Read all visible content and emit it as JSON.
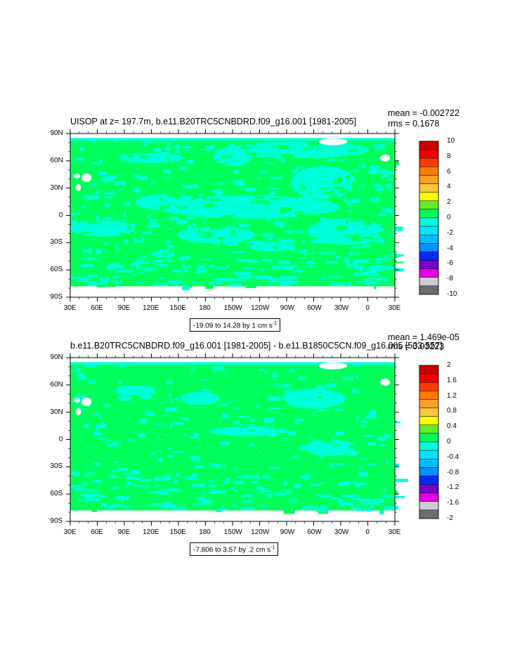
{
  "panels": [
    {
      "title": "UISOP at z= 197.7m, b.e11.B20TRC5CNBDRD.f09_g16.001 [1981-2005]",
      "mean": "mean = -0.002722",
      "rms": "rms = 0.1678",
      "contour_info": "-19.09 to 14.28 by 1 cm s",
      "contour_unit_exp": "-1",
      "colorbar_labels": [
        "10",
        "8",
        "6",
        "4",
        "2",
        "0",
        "-2",
        "-4",
        "-6",
        "-8",
        "-10"
      ],
      "colorbar_colors": [
        "#c80000",
        "#ee0000",
        "#ff3a00",
        "#ff7a00",
        "#ffa020",
        "#ffc83c",
        "#ffff00",
        "#60ee2a",
        "#00ff5a",
        "#00ffd8",
        "#00e6ff",
        "#00bcff",
        "#0090ff",
        "#0028ff",
        "#7800d2",
        "#e600e6",
        "#cccccc",
        "#6e6e6e"
      ],
      "lat_labels": [
        "90N",
        "60N",
        "30N",
        "0",
        "30S",
        "60S",
        "90S"
      ],
      "lon_labels": [
        "30E",
        "60E",
        "90E",
        "120E",
        "150E",
        "180",
        "150W",
        "120W",
        "90W",
        "60W",
        "30W",
        "0",
        "30E"
      ]
    },
    {
      "title": "b.e11.B20TRC5CNBDRD.f09_g16.001 [1981-2005] - b.e11.B1850C5CN.f09_g16.005 [533-557]",
      "mean": "mean = 1.469e-05",
      "rms": "rms = 0.03223",
      "contour_info": "-7.806 to 3.57 by .2 cm s",
      "contour_unit_exp": "-1",
      "colorbar_labels": [
        "2",
        "1.6",
        "1.2",
        "0.8",
        "0.4",
        "0",
        "-0.4",
        "-0.8",
        "-1.2",
        "-1.6",
        "-2"
      ],
      "colorbar_colors": [
        "#c80000",
        "#ee0000",
        "#ff3a00",
        "#ff7a00",
        "#ffa020",
        "#ffc83c",
        "#ffff00",
        "#60ee2a",
        "#00ff5a",
        "#00ffd8",
        "#00e6ff",
        "#00bcff",
        "#0090ff",
        "#0028ff",
        "#7800d2",
        "#e600e6",
        "#cccccc",
        "#6e6e6e"
      ],
      "lat_labels": [
        "90N",
        "60N",
        "30N",
        "0",
        "30S",
        "60S",
        "90S"
      ],
      "lon_labels": [
        "30E",
        "60E",
        "90E",
        "120E",
        "150E",
        "180",
        "150W",
        "120W",
        "90W",
        "60W",
        "30W",
        "0",
        "30E"
      ]
    }
  ],
  "colors": {
    "land": "#00ff5a",
    "ocean_pattern": "#00ffd8",
    "missing": "#ffffff"
  }
}
